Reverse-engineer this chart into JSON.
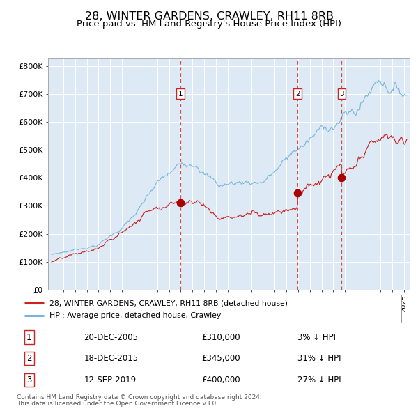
{
  "title": "28, WINTER GARDENS, CRAWLEY, RH11 8RB",
  "subtitle": "Price paid vs. HM Land Registry's House Price Index (HPI)",
  "title_fontsize": 11.5,
  "subtitle_fontsize": 9.5,
  "ylabel_ticks": [
    "£0",
    "£100K",
    "£200K",
    "£300K",
    "£400K",
    "£500K",
    "£600K",
    "£700K",
    "£800K"
  ],
  "ytick_values": [
    0,
    100000,
    200000,
    300000,
    400000,
    500000,
    600000,
    700000,
    800000
  ],
  "ylim": [
    0,
    830000
  ],
  "xlim_start": 1994.7,
  "xlim_end": 2025.5,
  "background_color": "#ddeaf5",
  "grid_color": "#ffffff",
  "hpi_color": "#7ab4d8",
  "price_color": "#cc2222",
  "sale_marker_color": "#aa0000",
  "vline_color": "#cc3333",
  "legend_label_price": "28, WINTER GARDENS, CRAWLEY, RH11 8RB (detached house)",
  "legend_label_hpi": "HPI: Average price, detached house, Crawley",
  "sales": [
    {
      "num": 1,
      "date_label": "20-DEC-2005",
      "price_label": "£310,000",
      "pct_label": "3% ↓ HPI",
      "year": 2005.97,
      "price": 310000
    },
    {
      "num": 2,
      "date_label": "18-DEC-2015",
      "price_label": "£345,000",
      "pct_label": "31% ↓ HPI",
      "year": 2015.97,
      "price": 345000
    },
    {
      "num": 3,
      "date_label": "12-SEP-2019",
      "price_label": "£400,000",
      "pct_label": "27% ↓ HPI",
      "year": 2019.71,
      "price": 400000
    }
  ],
  "footer_line1": "Contains HM Land Registry data © Crown copyright and database right 2024.",
  "footer_line2": "This data is licensed under the Open Government Licence v3.0.",
  "font_family": "DejaVu Sans"
}
